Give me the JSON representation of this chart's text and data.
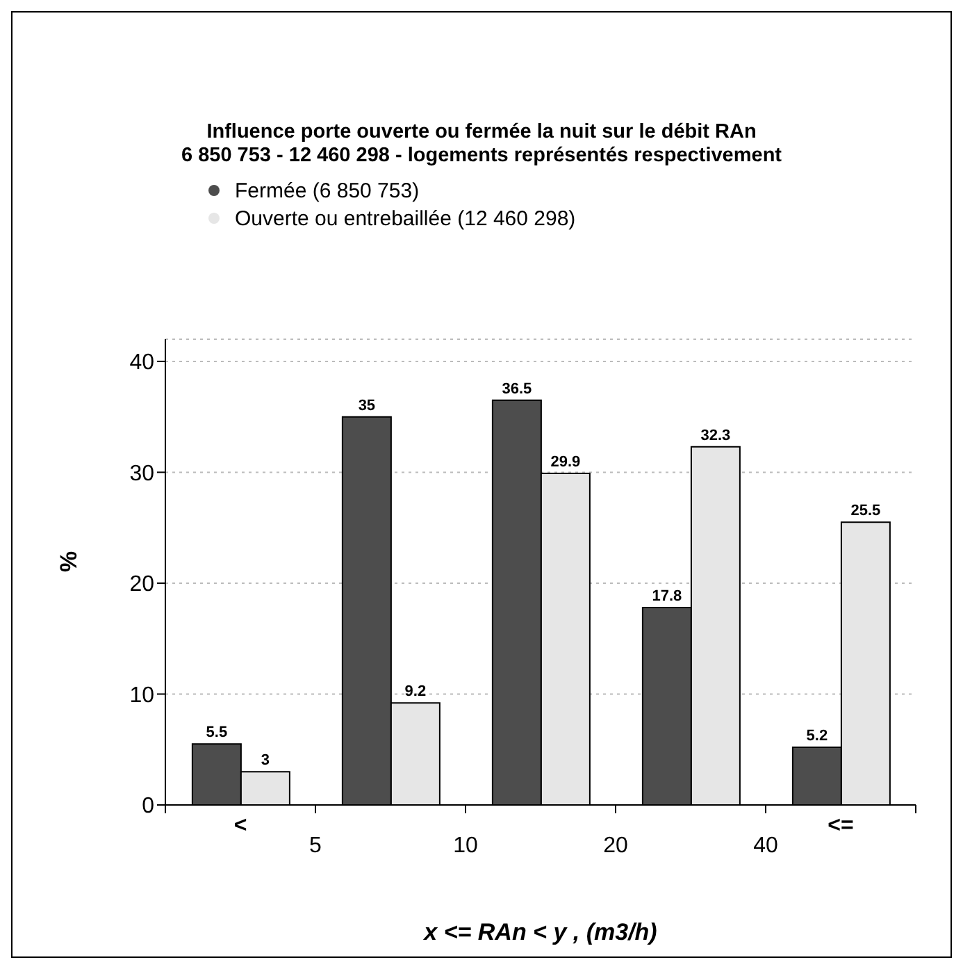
{
  "chart_data": {
    "type": "bar",
    "title": "Influence porte ouverte ou fermée la nuit sur le débit RAn\n6 850 753 - 12 460 298 - logements représentés respectivement",
    "xlabel": "x <= RAn < y , (m3/h)",
    "ylabel": "%",
    "categories": [
      "<",
      null,
      null,
      null,
      "<="
    ],
    "annotations": [
      "5",
      "10",
      "20",
      "40"
    ],
    "series": [
      {
        "name": "Fermée (6 850 753)",
        "color": "#4d4d4d",
        "values": [
          5.5,
          35,
          36.5,
          17.8,
          5.2
        ]
      },
      {
        "name": "Ouverte ou entrebaillée (12 460 298)",
        "color": "#e6e6e6",
        "values": [
          3,
          9.2,
          29.9,
          32.3,
          25.5
        ]
      }
    ],
    "ylim": [
      0,
      42
    ],
    "yticks": [
      0,
      10,
      20,
      30,
      40
    ],
    "grid": "y",
    "legend": "top left",
    "marker": "circle",
    "data_labels": true
  }
}
